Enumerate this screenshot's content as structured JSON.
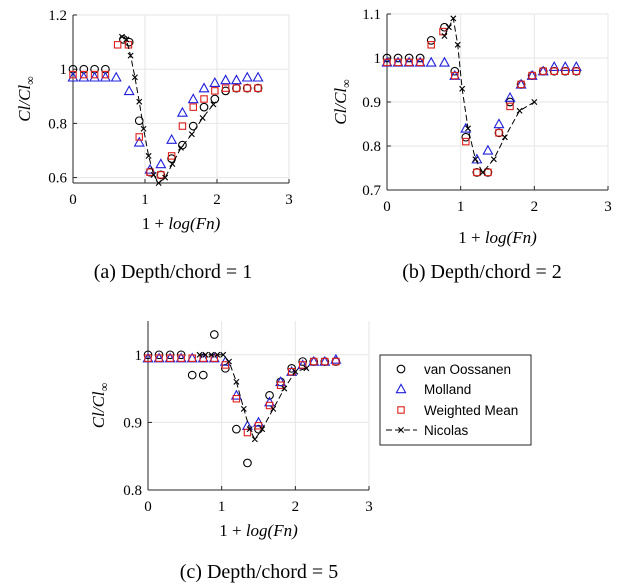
{
  "series_meta": [
    {
      "name": "van Oossanen",
      "marker": "circle",
      "color": "#000000"
    },
    {
      "name": "Molland",
      "marker": "triangle",
      "color": "#1f1fdc"
    },
    {
      "name": "Weighted Mean",
      "marker": "square",
      "color": "#e0201c"
    },
    {
      "name": "Nicolas",
      "marker": "x-dash",
      "color": "#000000"
    }
  ],
  "chart_data": [
    {
      "type": "scatter",
      "caption": "(a) Depth/chord = 1",
      "xlabel_main": "1 + ",
      "xlabel_italic": "log(Fn)",
      "ylabel_italic": "Cl/Cl",
      "ylabel_sub": "∞",
      "xlim": [
        0,
        3
      ],
      "ylim": [
        0.58,
        1.2
      ],
      "xticks": [
        "0",
        "1",
        "2",
        "3"
      ],
      "yticks": [
        "0.6",
        "0.8",
        "1",
        "1.2"
      ],
      "ytick_values": [
        0.6,
        0.8,
        1.0,
        1.2
      ],
      "grid": true,
      "series": [
        {
          "x": [
            0,
            0.15,
            0.3,
            0.45,
            0.7,
            0.78,
            0.92,
            1.07,
            1.22,
            1.37,
            1.52,
            1.67,
            1.82,
            1.97,
            2.12,
            2.27,
            2.42,
            2.57
          ],
          "y": [
            1.0,
            1.0,
            1.0,
            1.0,
            1.11,
            1.1,
            0.81,
            0.62,
            0.61,
            0.67,
            0.72,
            0.79,
            0.86,
            0.89,
            0.92,
            0.93,
            0.93,
            0.93
          ]
        },
        {
          "x": [
            0,
            0.15,
            0.3,
            0.45,
            0.6,
            0.78,
            0.92,
            1.07,
            1.22,
            1.37,
            1.52,
            1.67,
            1.82,
            1.97,
            2.12,
            2.27,
            2.42,
            2.57
          ],
          "y": [
            0.97,
            0.97,
            0.97,
            0.97,
            0.97,
            0.92,
            0.73,
            0.63,
            0.65,
            0.74,
            0.84,
            0.89,
            0.93,
            0.95,
            0.96,
            0.96,
            0.97,
            0.97
          ]
        },
        {
          "x": [
            0,
            0.15,
            0.3,
            0.45,
            0.62,
            0.77,
            0.92,
            1.07,
            1.22,
            1.37,
            1.52,
            1.67,
            1.82,
            1.97,
            2.12,
            2.27,
            2.42,
            2.57
          ],
          "y": [
            0.98,
            0.98,
            0.98,
            0.98,
            1.09,
            1.09,
            0.75,
            0.62,
            0.61,
            0.68,
            0.79,
            0.86,
            0.89,
            0.92,
            0.93,
            0.93,
            0.93,
            0.93
          ]
        },
        {
          "x": [
            0.68,
            0.74,
            0.8,
            0.86,
            0.92,
            0.98,
            1.05,
            1.12,
            1.19,
            1.28,
            1.38,
            1.5,
            1.65,
            1.8,
            1.95
          ],
          "y": [
            1.12,
            1.11,
            1.05,
            0.97,
            0.88,
            0.78,
            0.68,
            0.61,
            0.58,
            0.6,
            0.65,
            0.71,
            0.76,
            0.82,
            0.87
          ]
        }
      ]
    },
    {
      "type": "scatter",
      "caption": "(b) Depth/chord = 2",
      "xlabel_main": "1 + ",
      "xlabel_italic": "log(Fn)",
      "ylabel_italic": "Cl/Cl",
      "ylabel_sub": "∞",
      "xlim": [
        0,
        3
      ],
      "ylim": [
        0.7,
        1.1
      ],
      "xticks": [
        "0",
        "1",
        "2",
        "3"
      ],
      "yticks": [
        "0.7",
        "0.8",
        "0.9",
        "1",
        "1.1"
      ],
      "ytick_values": [
        0.7,
        0.8,
        0.9,
        1.0,
        1.1
      ],
      "grid": true,
      "series": [
        {
          "x": [
            0,
            0.15,
            0.3,
            0.45,
            0.6,
            0.78,
            0.92,
            1.07,
            1.22,
            1.37,
            1.52,
            1.67,
            1.82,
            1.97,
            2.12,
            2.27,
            2.42,
            2.57
          ],
          "y": [
            1.0,
            1.0,
            1.0,
            1.0,
            1.04,
            1.07,
            0.97,
            0.82,
            0.74,
            0.74,
            0.83,
            0.9,
            0.94,
            0.96,
            0.97,
            0.97,
            0.97,
            0.97
          ]
        },
        {
          "x": [
            0,
            0.15,
            0.3,
            0.45,
            0.6,
            0.78,
            0.92,
            1.07,
            1.22,
            1.37,
            1.52,
            1.67,
            1.82,
            1.97,
            2.12,
            2.27,
            2.42,
            2.57
          ],
          "y": [
            0.99,
            0.99,
            0.99,
            0.99,
            0.99,
            0.99,
            0.96,
            0.84,
            0.77,
            0.79,
            0.85,
            0.91,
            0.94,
            0.96,
            0.97,
            0.98,
            0.98,
            0.98
          ]
        },
        {
          "x": [
            0,
            0.15,
            0.3,
            0.45,
            0.6,
            0.76,
            0.92,
            1.07,
            1.22,
            1.37,
            1.52,
            1.67,
            1.82,
            1.97,
            2.12,
            2.27,
            2.42,
            2.57
          ],
          "y": [
            0.99,
            0.99,
            0.99,
            0.99,
            1.03,
            1.06,
            0.96,
            0.81,
            0.74,
            0.74,
            0.83,
            0.89,
            0.94,
            0.96,
            0.97,
            0.97,
            0.97,
            0.97
          ]
        },
        {
          "x": [
            0.78,
            0.84,
            0.9,
            0.96,
            1.02,
            1.1,
            1.2,
            1.3,
            1.45,
            1.6,
            1.8,
            2.0
          ],
          "y": [
            1.05,
            1.07,
            1.09,
            1.03,
            0.93,
            0.84,
            0.77,
            0.74,
            0.77,
            0.82,
            0.88,
            0.9
          ]
        }
      ]
    },
    {
      "type": "scatter",
      "caption": "(c) Depth/chord = 5",
      "xlabel_main": "1 + ",
      "xlabel_italic": "log(Fn)",
      "ylabel_italic": "Cl/Cl",
      "ylabel_sub": "∞",
      "xlim": [
        0,
        3
      ],
      "ylim": [
        0.8,
        1.05
      ],
      "xticks": [
        "0",
        "1",
        "2",
        "3"
      ],
      "yticks": [
        "0.8",
        "0.9",
        "1"
      ],
      "ytick_values": [
        0.8,
        0.9,
        1.0
      ],
      "grid": true,
      "series": [
        {
          "x": [
            0,
            0.15,
            0.3,
            0.45,
            0.6,
            0.75,
            0.9,
            1.05,
            1.2,
            1.35,
            1.5,
            1.65,
            1.8,
            1.95,
            2.1,
            2.25,
            2.4,
            2.55
          ],
          "y": [
            1.0,
            1.0,
            1.0,
            1.0,
            0.97,
            0.97,
            1.03,
            0.98,
            0.89,
            0.84,
            0.89,
            0.94,
            0.96,
            0.98,
            0.99,
            0.99,
            0.99,
            0.99
          ]
        },
        {
          "x": [
            0,
            0.15,
            0.3,
            0.45,
            0.6,
            0.75,
            0.9,
            1.05,
            1.2,
            1.35,
            1.5,
            1.65,
            1.8,
            1.95,
            2.1,
            2.25,
            2.4,
            2.55
          ],
          "y": [
            0.995,
            0.995,
            0.995,
            0.995,
            0.995,
            0.995,
            0.995,
            0.99,
            0.94,
            0.895,
            0.9,
            0.93,
            0.96,
            0.975,
            0.985,
            0.99,
            0.99,
            0.993
          ]
        },
        {
          "x": [
            0,
            0.15,
            0.3,
            0.45,
            0.6,
            0.75,
            0.9,
            1.05,
            1.2,
            1.35,
            1.5,
            1.65,
            1.8,
            1.95,
            2.1,
            2.25,
            2.4,
            2.55
          ],
          "y": [
            0.995,
            0.995,
            0.995,
            0.995,
            0.995,
            0.995,
            0.995,
            0.985,
            0.935,
            0.885,
            0.895,
            0.925,
            0.955,
            0.975,
            0.985,
            0.99,
            0.99,
            0.99
          ]
        },
        {
          "x": [
            0.7,
            0.78,
            0.86,
            0.94,
            1.02,
            1.1,
            1.2,
            1.3,
            1.38,
            1.45,
            1.55,
            1.7,
            1.85,
            2.0,
            2.15
          ],
          "y": [
            1.0,
            1.0,
            1.0,
            1.0,
            1.0,
            0.99,
            0.96,
            0.92,
            0.89,
            0.875,
            0.89,
            0.92,
            0.95,
            0.975,
            0.98
          ]
        }
      ]
    }
  ]
}
